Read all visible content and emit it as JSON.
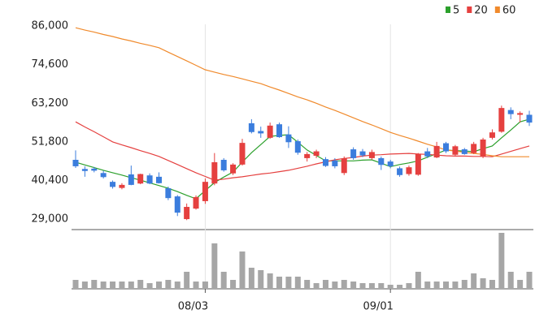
{
  "chart_data": {
    "type": "candlestick",
    "categories": [
      null,
      null,
      null,
      null,
      null,
      null,
      null,
      null,
      null,
      null,
      null,
      null,
      null,
      null,
      "08/03",
      null,
      null,
      null,
      null,
      null,
      null,
      null,
      null,
      null,
      null,
      null,
      null,
      null,
      null,
      null,
      null,
      null,
      null,
      null,
      "09/01",
      null,
      null,
      null,
      null,
      null,
      null,
      null,
      null,
      null,
      null,
      null,
      null,
      null,
      null,
      null
    ],
    "open": [
      46500,
      43800,
      43900,
      42600,
      40000,
      38200,
      42200,
      39500,
      41900,
      41500,
      38100,
      35700,
      29000,
      32100,
      34300,
      39500,
      46500,
      42500,
      45100,
      57300,
      55000,
      53000,
      57000,
      54000,
      52000,
      47000,
      47700,
      46700,
      46300,
      42600,
      49600,
      49000,
      47000,
      47000,
      46000,
      44000,
      42300,
      42100,
      49000,
      47200,
      51400,
      48000,
      49600,
      48500,
      47500,
      53000,
      54800,
      61200,
      59800,
      59800
    ],
    "high": [
      49300,
      44600,
      44400,
      43300,
      40400,
      39600,
      44800,
      42400,
      42500,
      42800,
      38600,
      36100,
      33600,
      36000,
      41000,
      48500,
      47000,
      45500,
      52700,
      58500,
      56300,
      57500,
      57500,
      56400,
      52500,
      48800,
      49500,
      47300,
      47000,
      47500,
      50200,
      49700,
      49500,
      47500,
      46500,
      44500,
      44800,
      48500,
      50000,
      51800,
      51800,
      50900,
      50000,
      51800,
      53000,
      55500,
      62500,
      62000,
      60800,
      61000
    ],
    "low": [
      44100,
      41500,
      42800,
      41000,
      38000,
      37800,
      39000,
      39300,
      39300,
      39500,
      34600,
      29900,
      28700,
      31800,
      33500,
      39000,
      43000,
      42000,
      44800,
      54300,
      53000,
      52700,
      53000,
      50000,
      48000,
      46000,
      47000,
      44400,
      44000,
      42000,
      46500,
      47300,
      46500,
      43500,
      44000,
      41500,
      41800,
      41800,
      47000,
      47000,
      48500,
      47500,
      48000,
      48200,
      47000,
      52500,
      54500,
      58500,
      57500,
      56500
    ],
    "close": [
      44600,
      43200,
      43300,
      41400,
      38500,
      39100,
      39100,
      42300,
      39500,
      39600,
      35200,
      30900,
      32600,
      35500,
      40000,
      45800,
      43400,
      45100,
      51500,
      54700,
      54300,
      56600,
      53200,
      51700,
      48600,
      48200,
      49000,
      44700,
      44600,
      46900,
      47000,
      47800,
      48800,
      45000,
      44600,
      42000,
      44300,
      48300,
      47500,
      50600,
      49000,
      50500,
      48200,
      51200,
      52500,
      54600,
      61800,
      60000,
      60300,
      57500
    ],
    "up_color": "#e5403f",
    "down_color": "#3b7ddd",
    "series": [
      {
        "name": "5",
        "color": "#2ca02c",
        "values": [
          45800,
          45000,
          44200,
          43400,
          42700,
          42000,
          41200,
          40500,
          39700,
          38900,
          38100,
          37100,
          36000,
          35000,
          37400,
          39800,
          41400,
          42900,
          45800,
          48600,
          51000,
          53400,
          53700,
          53900,
          51700,
          49400,
          47800,
          46200,
          46200,
          46200,
          46200,
          46400,
          46500,
          45500,
          44500,
          45100,
          45600,
          46200,
          47300,
          48300,
          49400,
          49200,
          49100,
          48900,
          49800,
          50600,
          53000,
          55300,
          57700,
          58500
        ]
      },
      {
        "name": "20",
        "color": "#e5403f",
        "values": [
          57700,
          56200,
          54800,
          53300,
          51800,
          50900,
          50100,
          49200,
          48400,
          47500,
          46300,
          45100,
          43900,
          42700,
          41600,
          40500,
          40800,
          41200,
          41500,
          41900,
          42300,
          42600,
          43000,
          43400,
          44000,
          44600,
          45300,
          45900,
          46500,
          46900,
          47200,
          47600,
          47900,
          48000,
          48200,
          48300,
          48400,
          48200,
          48100,
          47900,
          47700,
          47600,
          47600,
          47500,
          47500,
          47400,
          48200,
          49000,
          49800,
          50600
        ]
      },
      {
        "name": "60",
        "color": "#f08a2c",
        "values": [
          85500,
          84800,
          84200,
          83500,
          82900,
          82200,
          81600,
          80900,
          80300,
          79600,
          78300,
          77000,
          75700,
          74400,
          73100,
          72400,
          71700,
          71100,
          70400,
          69700,
          69000,
          68000,
          67100,
          66100,
          65100,
          64200,
          63200,
          62100,
          61100,
          60000,
          58900,
          57800,
          56800,
          55700,
          54600,
          53700,
          52900,
          52000,
          51100,
          50300,
          49400,
          49100,
          48700,
          48400,
          48100,
          47700,
          47400,
          47400,
          47400,
          47400
        ]
      }
    ],
    "volume": [
      10,
      8,
      10,
      8,
      8,
      8,
      8,
      10,
      6,
      8,
      10,
      8,
      20,
      8,
      8,
      55,
      20,
      10,
      45,
      25,
      22,
      18,
      14,
      14,
      14,
      10,
      6,
      10,
      8,
      10,
      8,
      6,
      6,
      6,
      4,
      4,
      6,
      20,
      8,
      8,
      8,
      8,
      10,
      18,
      12,
      10,
      68,
      20,
      10,
      20
    ],
    "volume_color": "#a6a6a6",
    "volume_lim": [
      0,
      70
    ],
    "ylim": [
      25900,
      88900
    ],
    "yticks": [
      {
        "value": 29000,
        "label": "29,000"
      },
      {
        "value": 40400,
        "label": "40,400"
      },
      {
        "value": 51800,
        "label": "51,800"
      },
      {
        "value": 63200,
        "label": "63,200"
      },
      {
        "value": 74600,
        "label": "74,600"
      },
      {
        "value": 86000,
        "label": "86,000"
      }
    ]
  }
}
